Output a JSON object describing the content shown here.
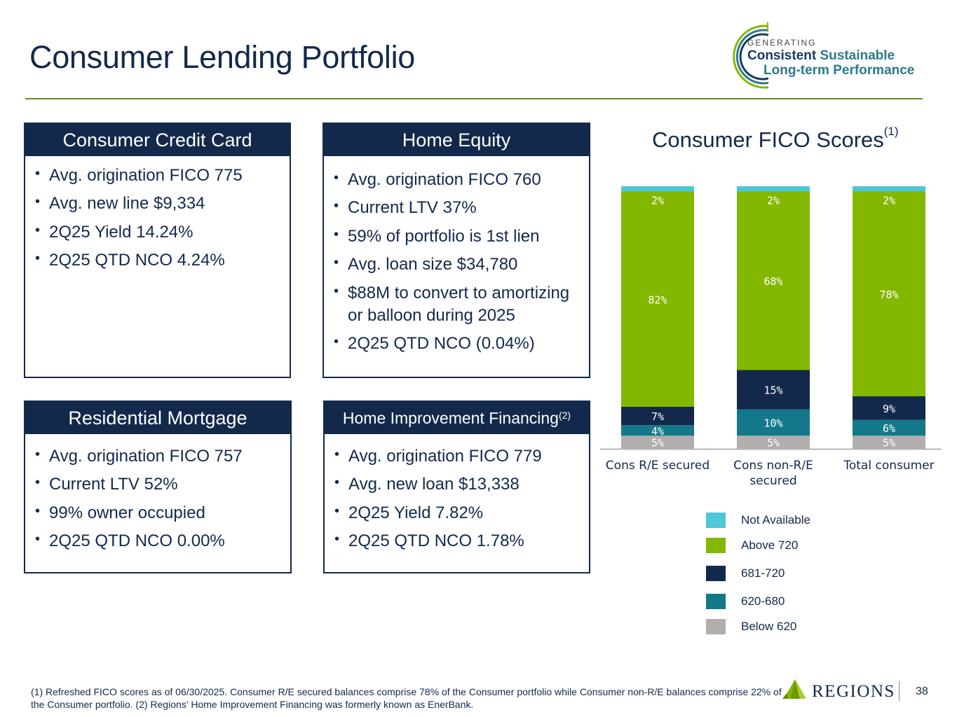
{
  "page": {
    "title": "Consumer Lending Portfolio"
  },
  "logo": {
    "generating": "GENERATING",
    "line1_a": "Consistent",
    "line1_b": "Sustainable",
    "line2": "Long-term Performance"
  },
  "boxes": {
    "credit_card": {
      "title": "Consumer Credit Card",
      "items": [
        "Avg. origination FICO 775",
        "Avg. new line $9,334",
        "2Q25 Yield 14.24%",
        "2Q25 QTD NCO 4.24%"
      ]
    },
    "home_equity": {
      "title": "Home Equity",
      "items": [
        "Avg. origination FICO 760",
        "Current LTV 37%",
        "59% of portfolio is 1st lien",
        "Avg. loan size $34,780",
        "$88M to convert to amortizing or balloon during 2025",
        "2Q25 QTD NCO (0.04%)"
      ]
    },
    "mortgage": {
      "title": "Residential Mortgage",
      "items": [
        "Avg. origination FICO 757",
        "Current LTV 52%",
        "99% owner occupied",
        "2Q25 QTD NCO 0.00%"
      ]
    },
    "home_improvement": {
      "title": "Home Improvement Financing",
      "note": "(2)",
      "items": [
        "Avg. origination FICO 779",
        "Avg. new loan $13,338",
        "2Q25 Yield 7.82%",
        "2Q25 QTD NCO 1.78%"
      ]
    }
  },
  "chart_data": {
    "type": "bar",
    "stacked": true,
    "title": "Consumer FICO Scores",
    "title_note": "(1)",
    "categories": [
      "Cons R/E secured",
      "Cons non-R/E secured",
      "Total consumer"
    ],
    "series": [
      {
        "name": "Below 620",
        "values": [
          5,
          5,
          5
        ],
        "labels": [
          "5%",
          "5%",
          "5%"
        ],
        "color": "#b1aeac"
      },
      {
        "name": "620-680",
        "values": [
          4,
          10,
          6
        ],
        "labels": [
          "4%",
          "10%",
          "6%"
        ],
        "color": "#13798a"
      },
      {
        "name": "681-720",
        "values": [
          7,
          15,
          9
        ],
        "labels": [
          "7%",
          "15%",
          "9%"
        ],
        "color": "#13294b"
      },
      {
        "name": "Above 720",
        "values": [
          82,
          68,
          78
        ],
        "labels": [
          "82%",
          "68%",
          "78%"
        ],
        "color": "#84b800"
      },
      {
        "name": "Not Available",
        "values": [
          2,
          2,
          2
        ],
        "labels": [
          "2%",
          "2%",
          "2%"
        ],
        "color": "#4dc6d8"
      }
    ],
    "legend_order": [
      "Not Available",
      "Above 720",
      "681-720",
      "620-680",
      "Below 620"
    ],
    "legend_position": "bottom",
    "ylim": [
      0,
      100
    ],
    "grid": false
  },
  "footnote": "(1) Refreshed FICO scores as of 06/30/2025. Consumer R/E secured balances comprise 78% of the Consumer portfolio while Consumer non-R/E balances comprise 22% of the Consumer portfolio. (2) Regions' Home Improvement Financing was formerly known as EnerBank.",
  "brand": {
    "name": "REGIONS",
    "page_number": "38"
  }
}
